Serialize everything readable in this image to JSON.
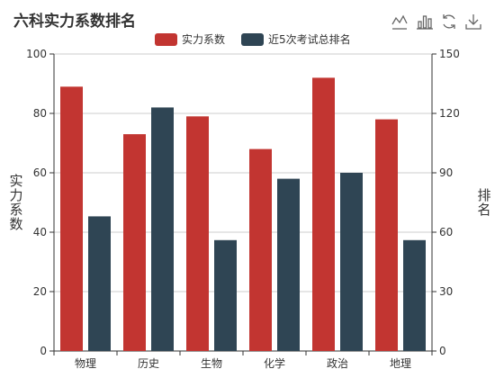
{
  "chart_data": {
    "type": "bar",
    "title": "六科实力系数排名",
    "categories": [
      "物理",
      "历史",
      "生物",
      "化学",
      "政治",
      "地理"
    ],
    "series": [
      {
        "name": "实力系数",
        "axis": "left",
        "color": "#c23531",
        "values": [
          89,
          73,
          79,
          68,
          92,
          78
        ]
      },
      {
        "name": "近5次考试总排名",
        "axis": "right",
        "color": "#2f4554",
        "values": [
          68,
          123,
          56,
          87,
          90,
          56
        ]
      }
    ],
    "y_left": {
      "label": "实力系数",
      "min": 0,
      "max": 100,
      "ticks": [
        0,
        20,
        40,
        60,
        80,
        100
      ]
    },
    "y_right": {
      "label": "排名",
      "min": 0,
      "max": 150,
      "ticks": [
        0,
        30,
        60,
        90,
        120,
        150
      ]
    },
    "grid": true,
    "legend_position": "top-center"
  },
  "toolbox": {
    "icons": [
      "line-chart-icon",
      "bar-chart-icon",
      "restore-icon",
      "download-icon"
    ]
  }
}
